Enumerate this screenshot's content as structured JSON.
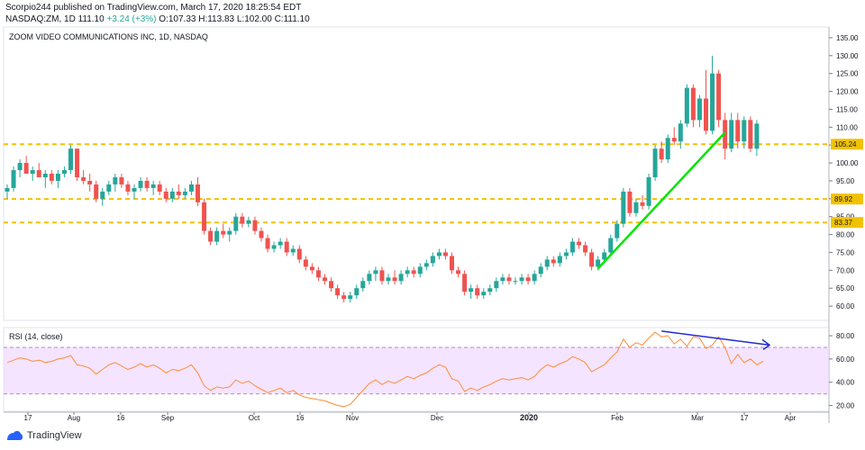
{
  "header": {
    "line1": "Scorpio244 published on TradingView.com, March 17, 2020 18:25:54 EDT",
    "symbol": "NASDAQ:ZM, 1D",
    "last": "111.10",
    "change": "+3.24 (+3%)",
    "open": "O:107.33",
    "high": "H:113.83",
    "low": "L:102.00",
    "close": "C:111.10"
  },
  "footer": {
    "brand": "TradingView"
  },
  "colors": {
    "up": "#26a69a",
    "down": "#ef5350",
    "trend": "#00e600",
    "rsi": "#ff8c3a",
    "rsi_trend": "#1f2bd6",
    "level": "#f2c200",
    "band": "#f0d8ff"
  },
  "chart_data": [
    {
      "type": "candlestick",
      "title": "ZOOM VIDEO COMMUNICATIONS INC, 1D, NASDAQ",
      "ylim": [
        56,
        138
      ],
      "y_ticks": [
        "135.00",
        "130.00",
        "125.00",
        "120.00",
        "115.00",
        "110.00",
        "105.00",
        "100.00",
        "95.00",
        "90.00",
        "85.00",
        "80.00",
        "75.00",
        "70.00",
        "65.00",
        "60.00"
      ],
      "x_ticks": [
        "17",
        "Aug",
        "16",
        "Sep",
        "Oct",
        "16",
        "Nov",
        "Dec",
        "2020",
        "Feb",
        "Mar",
        "17",
        "Apr"
      ],
      "levels": [
        {
          "label": "105.24",
          "value": 105.24
        },
        {
          "label": "89.92",
          "value": 89.92
        },
        {
          "label": "83.37",
          "value": 83.37
        }
      ],
      "trendline": {
        "from": 70.5,
        "to": 108.5
      },
      "candles": [
        {
          "o": 92,
          "h": 94,
          "l": 90,
          "c": 93
        },
        {
          "o": 93,
          "h": 99,
          "l": 92,
          "c": 98
        },
        {
          "o": 98,
          "h": 101,
          "l": 96,
          "c": 100
        },
        {
          "o": 100,
          "h": 102,
          "l": 97,
          "c": 97
        },
        {
          "o": 97,
          "h": 99,
          "l": 95,
          "c": 98
        },
        {
          "o": 98,
          "h": 100,
          "l": 96,
          "c": 96
        },
        {
          "o": 96,
          "h": 98,
          "l": 93,
          "c": 97
        },
        {
          "o": 97,
          "h": 98,
          "l": 94,
          "c": 95
        },
        {
          "o": 95,
          "h": 98,
          "l": 93,
          "c": 97
        },
        {
          "o": 97,
          "h": 99,
          "l": 96,
          "c": 98
        },
        {
          "o": 98,
          "h": 105,
          "l": 97,
          "c": 104
        },
        {
          "o": 104,
          "h": 104,
          "l": 95,
          "c": 96
        },
        {
          "o": 96,
          "h": 98,
          "l": 94,
          "c": 95
        },
        {
          "o": 95,
          "h": 97,
          "l": 92,
          "c": 94
        },
        {
          "o": 94,
          "h": 95,
          "l": 89,
          "c": 90
        },
        {
          "o": 90,
          "h": 93,
          "l": 88,
          "c": 92
        },
        {
          "o": 92,
          "h": 95,
          "l": 91,
          "c": 94
        },
        {
          "o": 94,
          "h": 97,
          "l": 92,
          "c": 96
        },
        {
          "o": 96,
          "h": 97,
          "l": 93,
          "c": 94
        },
        {
          "o": 94,
          "h": 95,
          "l": 91,
          "c": 92
        },
        {
          "o": 92,
          "h": 94,
          "l": 90,
          "c": 93
        },
        {
          "o": 93,
          "h": 96,
          "l": 92,
          "c": 95
        },
        {
          "o": 95,
          "h": 96,
          "l": 92,
          "c": 93
        },
        {
          "o": 93,
          "h": 95,
          "l": 91,
          "c": 94
        },
        {
          "o": 94,
          "h": 95,
          "l": 91,
          "c": 92
        },
        {
          "o": 92,
          "h": 93,
          "l": 89,
          "c": 90
        },
        {
          "o": 90,
          "h": 93,
          "l": 89,
          "c": 92
        },
        {
          "o": 92,
          "h": 94,
          "l": 90,
          "c": 91
        },
        {
          "o": 91,
          "h": 93,
          "l": 90,
          "c": 92
        },
        {
          "o": 92,
          "h": 95,
          "l": 91,
          "c": 94
        },
        {
          "o": 94,
          "h": 96,
          "l": 88,
          "c": 89
        },
        {
          "o": 89,
          "h": 90,
          "l": 80,
          "c": 81
        },
        {
          "o": 81,
          "h": 82,
          "l": 77,
          "c": 78
        },
        {
          "o": 78,
          "h": 82,
          "l": 77,
          "c": 81
        },
        {
          "o": 81,
          "h": 83,
          "l": 79,
          "c": 80
        },
        {
          "o": 80,
          "h": 82,
          "l": 78,
          "c": 81
        },
        {
          "o": 81,
          "h": 86,
          "l": 80,
          "c": 85
        },
        {
          "o": 85,
          "h": 86,
          "l": 82,
          "c": 83
        },
        {
          "o": 83,
          "h": 85,
          "l": 82,
          "c": 84
        },
        {
          "o": 84,
          "h": 85,
          "l": 80,
          "c": 81
        },
        {
          "o": 81,
          "h": 82,
          "l": 78,
          "c": 79
        },
        {
          "o": 79,
          "h": 80,
          "l": 75,
          "c": 76
        },
        {
          "o": 76,
          "h": 78,
          "l": 75,
          "c": 77
        },
        {
          "o": 77,
          "h": 79,
          "l": 76,
          "c": 78
        },
        {
          "o": 78,
          "h": 79,
          "l": 74,
          "c": 75
        },
        {
          "o": 75,
          "h": 77,
          "l": 74,
          "c": 76
        },
        {
          "o": 76,
          "h": 77,
          "l": 72,
          "c": 73
        },
        {
          "o": 73,
          "h": 74,
          "l": 70,
          "c": 71
        },
        {
          "o": 71,
          "h": 72,
          "l": 69,
          "c": 70
        },
        {
          "o": 70,
          "h": 71,
          "l": 67,
          "c": 68
        },
        {
          "o": 68,
          "h": 69,
          "l": 66,
          "c": 67
        },
        {
          "o": 67,
          "h": 68,
          "l": 64,
          "c": 65
        },
        {
          "o": 65,
          "h": 66,
          "l": 62,
          "c": 63
        },
        {
          "o": 63,
          "h": 64,
          "l": 61,
          "c": 62
        },
        {
          "o": 62,
          "h": 64,
          "l": 61,
          "c": 63
        },
        {
          "o": 63,
          "h": 66,
          "l": 62,
          "c": 65
        },
        {
          "o": 65,
          "h": 68,
          "l": 64,
          "c": 67
        },
        {
          "o": 67,
          "h": 70,
          "l": 66,
          "c": 69
        },
        {
          "o": 69,
          "h": 71,
          "l": 67,
          "c": 70
        },
        {
          "o": 70,
          "h": 71,
          "l": 66,
          "c": 67
        },
        {
          "o": 67,
          "h": 69,
          "l": 66,
          "c": 68
        },
        {
          "o": 68,
          "h": 70,
          "l": 66,
          "c": 67
        },
        {
          "o": 67,
          "h": 70,
          "l": 66,
          "c": 69
        },
        {
          "o": 69,
          "h": 71,
          "l": 68,
          "c": 70
        },
        {
          "o": 70,
          "h": 71,
          "l": 68,
          "c": 69
        },
        {
          "o": 69,
          "h": 72,
          "l": 68,
          "c": 71
        },
        {
          "o": 71,
          "h": 73,
          "l": 70,
          "c": 72
        },
        {
          "o": 72,
          "h": 75,
          "l": 71,
          "c": 74
        },
        {
          "o": 74,
          "h": 76,
          "l": 73,
          "c": 75
        },
        {
          "o": 75,
          "h": 76,
          "l": 73,
          "c": 74
        },
        {
          "o": 74,
          "h": 75,
          "l": 69,
          "c": 70
        },
        {
          "o": 70,
          "h": 71,
          "l": 68,
          "c": 69
        },
        {
          "o": 69,
          "h": 70,
          "l": 63,
          "c": 64
        },
        {
          "o": 64,
          "h": 66,
          "l": 62,
          "c": 65
        },
        {
          "o": 65,
          "h": 66,
          "l": 62,
          "c": 63
        },
        {
          "o": 63,
          "h": 65,
          "l": 62,
          "c": 64
        },
        {
          "o": 64,
          "h": 66,
          "l": 63,
          "c": 65
        },
        {
          "o": 65,
          "h": 68,
          "l": 64,
          "c": 67
        },
        {
          "o": 67,
          "h": 69,
          "l": 66,
          "c": 68
        },
        {
          "o": 68,
          "h": 69,
          "l": 66,
          "c": 67
        },
        {
          "o": 67,
          "h": 68,
          "l": 66,
          "c": 67
        },
        {
          "o": 67,
          "h": 69,
          "l": 66,
          "c": 68
        },
        {
          "o": 68,
          "h": 69,
          "l": 66,
          "c": 67
        },
        {
          "o": 67,
          "h": 70,
          "l": 66,
          "c": 69
        },
        {
          "o": 69,
          "h": 72,
          "l": 68,
          "c": 71
        },
        {
          "o": 71,
          "h": 74,
          "l": 70,
          "c": 73
        },
        {
          "o": 73,
          "h": 74,
          "l": 71,
          "c": 72
        },
        {
          "o": 72,
          "h": 75,
          "l": 71,
          "c": 74
        },
        {
          "o": 74,
          "h": 76,
          "l": 73,
          "c": 75
        },
        {
          "o": 75,
          "h": 79,
          "l": 74,
          "c": 78
        },
        {
          "o": 78,
          "h": 79,
          "l": 76,
          "c": 77
        },
        {
          "o": 77,
          "h": 78,
          "l": 74,
          "c": 75
        },
        {
          "o": 75,
          "h": 76,
          "l": 70,
          "c": 71
        },
        {
          "o": 71,
          "h": 74,
          "l": 70,
          "c": 73
        },
        {
          "o": 73,
          "h": 76,
          "l": 72,
          "c": 75
        },
        {
          "o": 75,
          "h": 80,
          "l": 74,
          "c": 79
        },
        {
          "o": 79,
          "h": 84,
          "l": 78,
          "c": 83
        },
        {
          "o": 83,
          "h": 93,
          "l": 82,
          "c": 92
        },
        {
          "o": 92,
          "h": 93,
          "l": 85,
          "c": 86
        },
        {
          "o": 86,
          "h": 90,
          "l": 85,
          "c": 89
        },
        {
          "o": 89,
          "h": 91,
          "l": 87,
          "c": 88
        },
        {
          "o": 88,
          "h": 97,
          "l": 87,
          "c": 96
        },
        {
          "o": 96,
          "h": 105,
          "l": 95,
          "c": 104
        },
        {
          "o": 104,
          "h": 106,
          "l": 100,
          "c": 101
        },
        {
          "o": 101,
          "h": 108,
          "l": 100,
          "c": 107
        },
        {
          "o": 107,
          "h": 110,
          "l": 105,
          "c": 106
        },
        {
          "o": 106,
          "h": 112,
          "l": 104,
          "c": 111
        },
        {
          "o": 111,
          "h": 122,
          "l": 110,
          "c": 121
        },
        {
          "o": 121,
          "h": 122,
          "l": 110,
          "c": 112
        },
        {
          "o": 112,
          "h": 119,
          "l": 110,
          "c": 118
        },
        {
          "o": 118,
          "h": 126,
          "l": 108,
          "c": 109
        },
        {
          "o": 109,
          "h": 130,
          "l": 108,
          "c": 125
        },
        {
          "o": 125,
          "h": 126,
          "l": 110,
          "c": 112
        },
        {
          "o": 112,
          "h": 114,
          "l": 101,
          "c": 104
        },
        {
          "o": 104,
          "h": 114,
          "l": 103,
          "c": 112
        },
        {
          "o": 112,
          "h": 114,
          "l": 104,
          "c": 106
        },
        {
          "o": 106,
          "h": 113,
          "l": 104,
          "c": 112
        },
        {
          "o": 112,
          "h": 113,
          "l": 103,
          "c": 104
        },
        {
          "o": 104,
          "h": 112,
          "l": 102,
          "c": 111
        }
      ]
    },
    {
      "type": "line",
      "title": "RSI (14, close)",
      "ylim": [
        15,
        87
      ],
      "y_ticks": [
        "80.00",
        "60.00",
        "40.00",
        "20.00"
      ],
      "band": [
        30,
        70
      ],
      "series": [
        {
          "values": [
            57,
            59,
            61,
            60,
            58,
            59,
            57,
            58,
            60,
            61,
            63,
            55,
            54,
            52,
            47,
            51,
            55,
            57,
            54,
            51,
            53,
            56,
            53,
            55,
            52,
            48,
            51,
            50,
            52,
            55,
            48,
            37,
            33,
            36,
            35,
            36,
            42,
            39,
            41,
            37,
            34,
            31,
            33,
            35,
            31,
            33,
            29,
            27,
            26,
            25,
            24,
            22,
            20,
            19,
            21,
            27,
            33,
            39,
            42,
            38,
            41,
            39,
            42,
            45,
            43,
            46,
            48,
            52,
            55,
            53,
            43,
            41,
            32,
            35,
            33,
            36,
            38,
            41,
            43,
            42,
            43,
            44,
            42,
            45,
            51,
            55,
            53,
            56,
            58,
            62,
            60,
            57,
            49,
            52,
            55,
            61,
            66,
            77,
            70,
            74,
            72,
            78,
            83,
            79,
            80,
            73,
            77,
            71,
            79,
            78,
            69,
            72,
            79,
            70,
            56,
            64,
            57,
            60,
            55,
            58
          ]
        }
      ],
      "trend": {
        "from": 84,
        "to": 72
      }
    }
  ]
}
